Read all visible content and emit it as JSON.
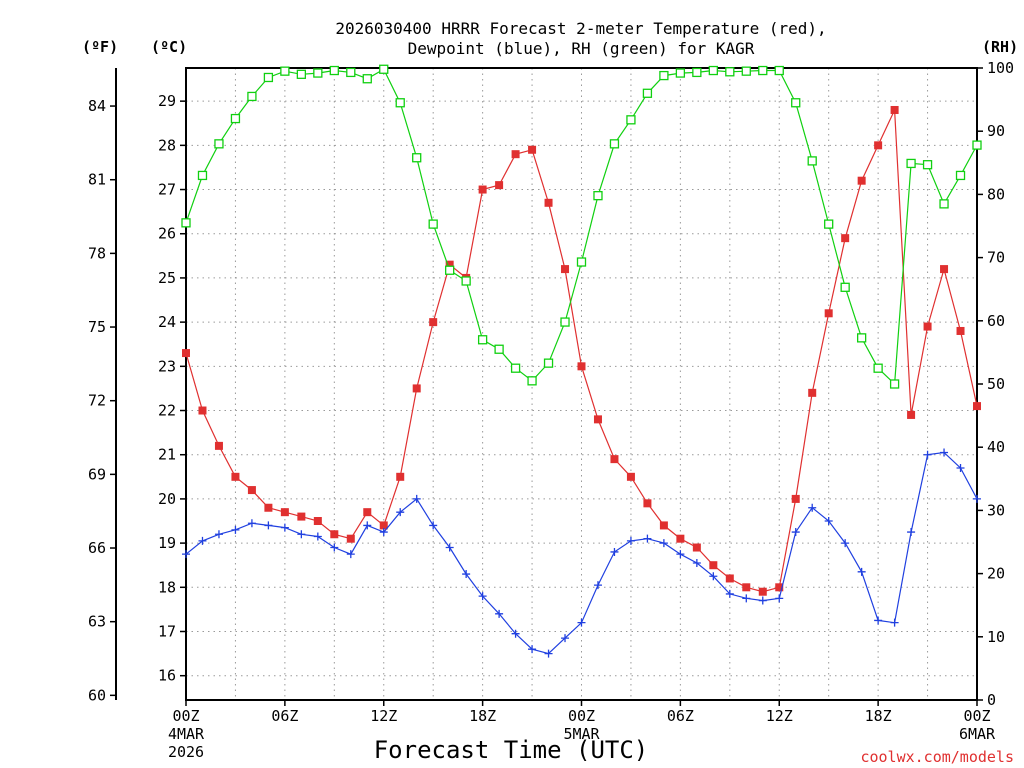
{
  "title": {
    "line1": "2026030400 HRRR Forecast 2-meter Temperature (red),",
    "line2": "Dewpoint (blue), RH (green) for KAGR"
  },
  "axes": {
    "unit_f": "(ºF)",
    "unit_c": "(ºC)",
    "unit_rh": "(RH)",
    "xlabel": "Forecast Time (UTC)",
    "f_ticks": [
      "60",
      "63",
      "66",
      "69",
      "72",
      "75",
      "78",
      "81",
      "84"
    ],
    "c_ticks": [
      "16",
      "17",
      "18",
      "19",
      "20",
      "21",
      "22",
      "23",
      "24",
      "25",
      "26",
      "27",
      "28",
      "29"
    ],
    "rh_ticks": [
      "0",
      "10",
      "20",
      "30",
      "40",
      "50",
      "60",
      "70",
      "80",
      "90",
      "100"
    ],
    "x_ticks": [
      {
        "hour": 0,
        "label": "00Z",
        "date1": "4MAR",
        "date2": "2026"
      },
      {
        "hour": 6,
        "label": "06Z",
        "date1": "",
        "date2": ""
      },
      {
        "hour": 12,
        "label": "12Z",
        "date1": "",
        "date2": ""
      },
      {
        "hour": 18,
        "label": "18Z",
        "date1": "",
        "date2": ""
      },
      {
        "hour": 24,
        "label": "00Z",
        "date1": "5MAR",
        "date2": ""
      },
      {
        "hour": 30,
        "label": "06Z",
        "date1": "",
        "date2": ""
      },
      {
        "hour": 36,
        "label": "12Z",
        "date1": "",
        "date2": ""
      },
      {
        "hour": 42,
        "label": "18Z",
        "date1": "",
        "date2": ""
      },
      {
        "hour": 48,
        "label": "00Z",
        "date1": "6MAR",
        "date2": ""
      }
    ]
  },
  "credit": "coolwx.com/models",
  "colors": {
    "temperature": "#e03030",
    "dewpoint": "#2040e0",
    "rh": "#10d010"
  },
  "chart_data": {
    "type": "line",
    "x_unit": "forecast hour",
    "x": [
      0,
      1,
      2,
      3,
      4,
      5,
      6,
      7,
      8,
      9,
      10,
      11,
      12,
      13,
      14,
      15,
      16,
      17,
      18,
      19,
      20,
      21,
      22,
      23,
      24,
      25,
      26,
      27,
      28,
      29,
      30,
      31,
      32,
      33,
      34,
      35,
      36,
      37,
      38,
      39,
      40,
      41,
      42,
      43,
      44,
      45,
      46,
      47,
      48
    ],
    "xlim": [
      0,
      48
    ],
    "y_left_celsius_lim": [
      15.45,
      29.75
    ],
    "y_left_fahrenheit_ticks": [
      60,
      63,
      66,
      69,
      72,
      75,
      78,
      81,
      84
    ],
    "y_right_rh_lim": [
      0,
      100
    ],
    "grid": true,
    "series": [
      {
        "name": "Temperature",
        "axis": "celsius",
        "marker": "filled-square",
        "values": [
          23.3,
          22.0,
          21.2,
          20.5,
          20.2,
          19.8,
          19.7,
          19.6,
          19.5,
          19.2,
          19.1,
          19.7,
          19.4,
          20.5,
          22.5,
          24.0,
          25.3,
          25.0,
          27.0,
          27.1,
          27.8,
          27.9,
          26.7,
          25.2,
          23.0,
          21.8,
          20.9,
          20.5,
          19.9,
          19.4,
          19.1,
          18.9,
          18.5,
          18.2,
          18.0,
          17.9,
          18.0,
          20.0,
          22.4,
          24.2,
          25.9,
          27.2,
          28.0,
          28.8,
          21.9,
          23.9,
          25.2,
          23.8,
          22.1
        ]
      },
      {
        "name": "Dewpoint",
        "axis": "celsius",
        "marker": "plus",
        "values": [
          18.75,
          19.05,
          19.2,
          19.3,
          19.45,
          19.4,
          19.35,
          19.2,
          19.15,
          18.9,
          18.75,
          19.4,
          19.25,
          19.7,
          20.0,
          19.4,
          18.9,
          18.3,
          17.8,
          17.4,
          16.95,
          16.6,
          16.5,
          16.85,
          17.2,
          18.05,
          18.8,
          19.05,
          19.1,
          19.0,
          18.75,
          18.55,
          18.25,
          17.85,
          17.75,
          17.7,
          17.75,
          19.25,
          19.8,
          19.5,
          19.0,
          18.35,
          17.25,
          17.2,
          19.25,
          21.0,
          21.05,
          20.7,
          20.0
        ]
      },
      {
        "name": "RH",
        "axis": "rh",
        "marker": "open-square",
        "values": [
          75.5,
          83,
          88,
          92,
          95.5,
          98.5,
          99.5,
          99,
          99.2,
          99.6,
          99.3,
          98.3,
          99.8,
          94.5,
          85.8,
          75.3,
          68,
          66.3,
          57,
          55.5,
          52.5,
          50.5,
          53.3,
          59.8,
          69.3,
          79.8,
          88,
          91.8,
          96,
          98.8,
          99.2,
          99.3,
          99.6,
          99.4,
          99.5,
          99.6,
          99.6,
          94.5,
          85.3,
          75.3,
          65.3,
          57.3,
          52.5,
          50,
          84.9,
          84.7,
          78.5,
          83,
          87.8
        ]
      }
    ]
  }
}
